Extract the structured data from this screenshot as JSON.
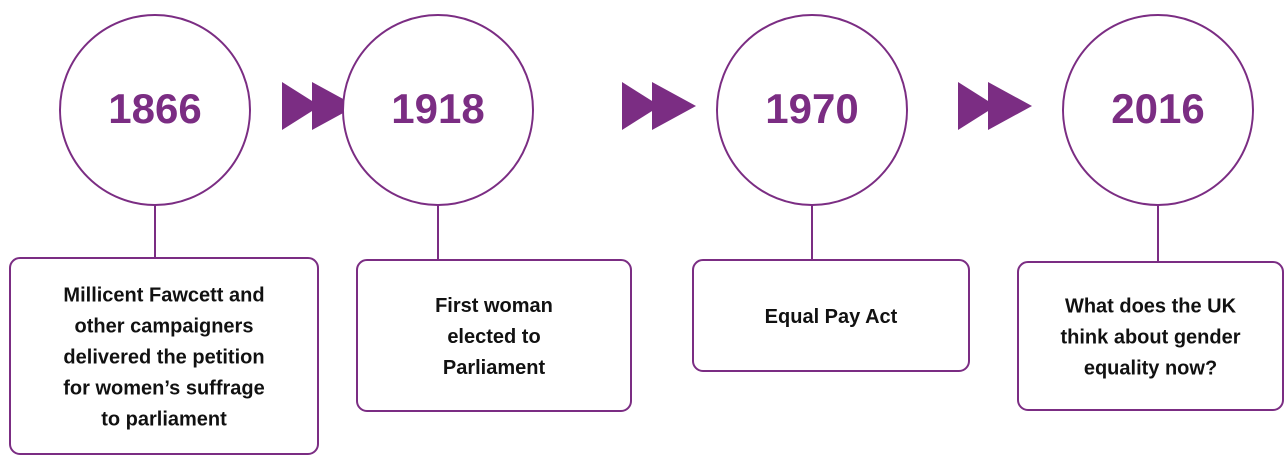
{
  "timeline": [
    {
      "year": "1866",
      "lines": [
        "Millicent Fawcett and",
        "other campaigners",
        "delivered the petition",
        "for women’s suffrage",
        "to parliament"
      ]
    },
    {
      "year": "1918",
      "lines": [
        "First woman",
        "elected to",
        "Parliament"
      ]
    },
    {
      "year": "1970",
      "lines": [
        "Equal Pay Act"
      ]
    },
    {
      "year": "2016",
      "lines": [
        "What does the UK",
        "think about gender",
        "equality now?"
      ]
    }
  ]
}
